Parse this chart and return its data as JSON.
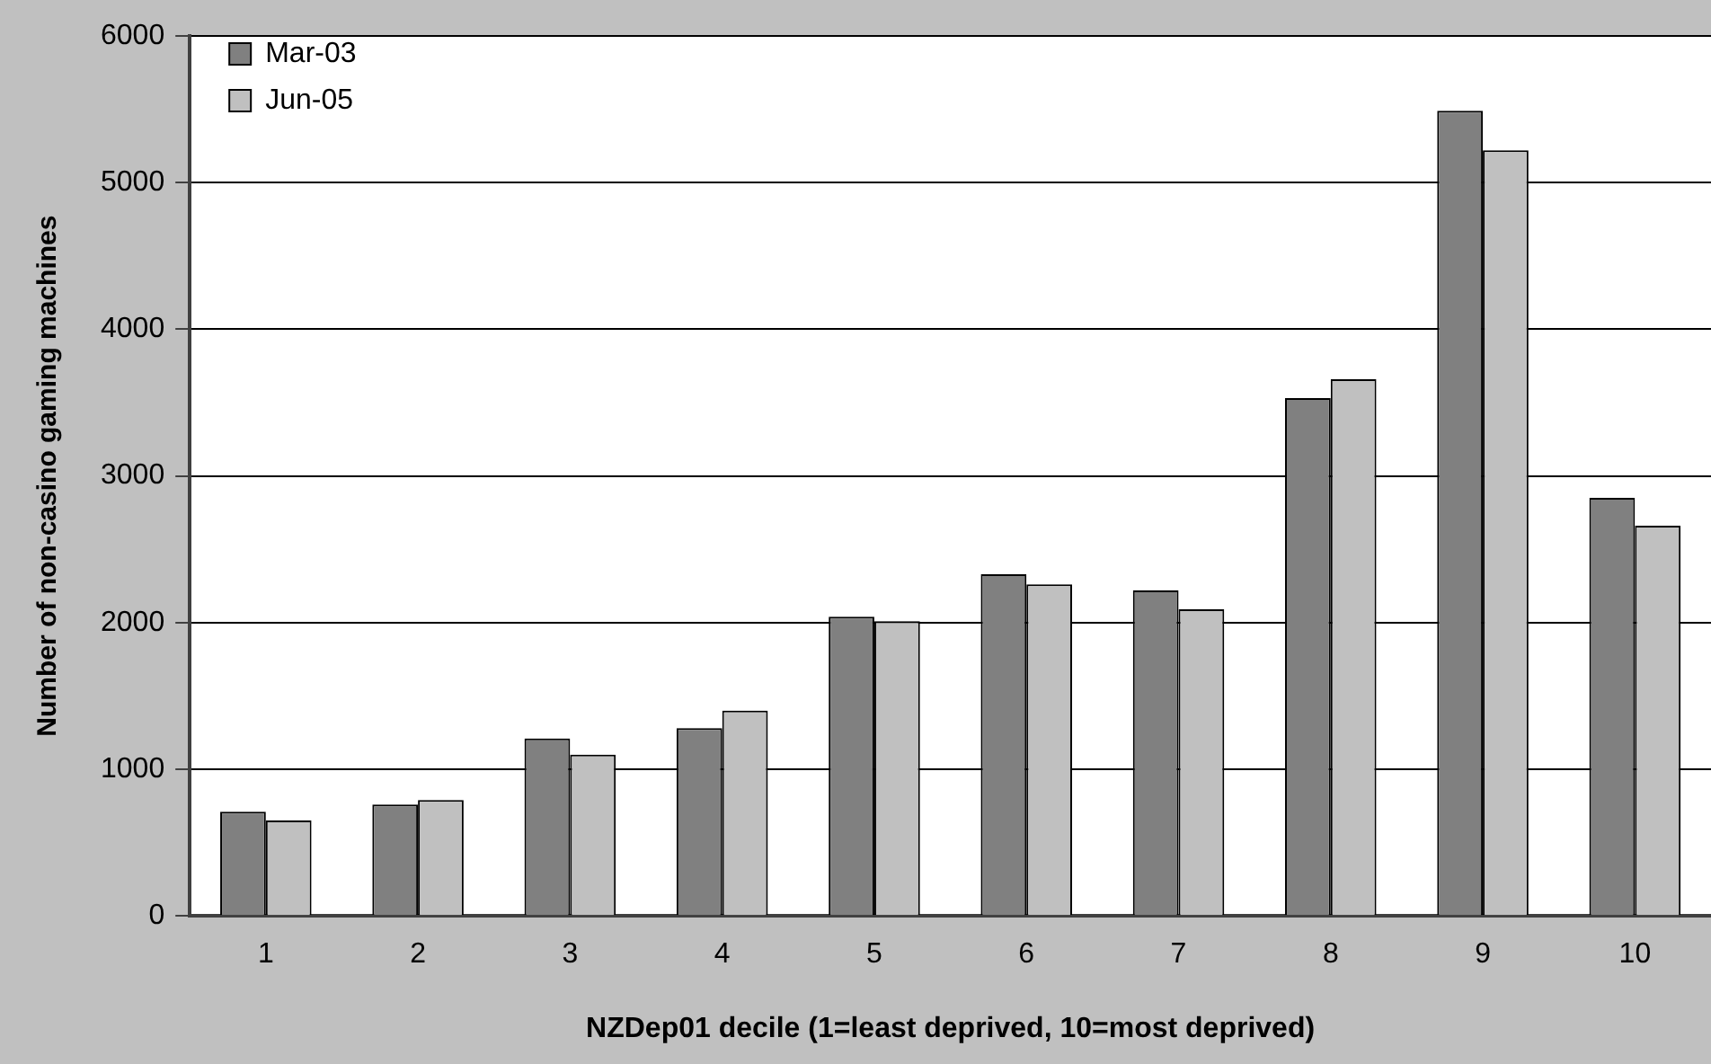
{
  "chart_data": {
    "type": "bar",
    "xlabel": "NZDep01 decile (1=least deprived, 10=most deprived)",
    "ylabel": "Number of non-casino gaming machines",
    "categories": [
      "1",
      "2",
      "3",
      "4",
      "5",
      "6",
      "7",
      "8",
      "9",
      "10"
    ],
    "series": [
      {
        "name": "Mar-03",
        "color": "#808080",
        "values": [
          710,
          760,
          1210,
          1280,
          2040,
          2330,
          2220,
          3530,
          5490,
          2850
        ]
      },
      {
        "name": "Jun-05",
        "color": "#c0c0c0",
        "values": [
          650,
          790,
          1100,
          1400,
          2010,
          2260,
          2090,
          3660,
          5220,
          2660
        ]
      }
    ],
    "ylim": [
      0,
      6000
    ],
    "yticks": [
      0,
      1000,
      2000,
      3000,
      4000,
      5000,
      6000
    ],
    "grid": "y",
    "legend": "top left"
  }
}
